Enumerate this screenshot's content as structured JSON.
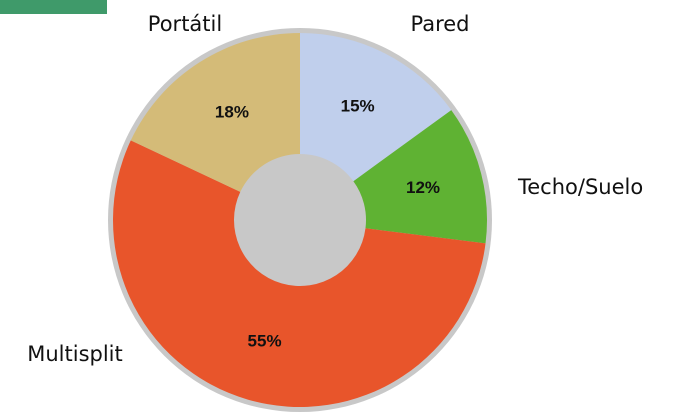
{
  "chart_data": {
    "type": "donut",
    "categories": [
      "Pared",
      "Techo/Suelo",
      "Multisplit",
      "Portátil"
    ],
    "values": [
      15,
      12,
      55,
      18
    ],
    "value_labels": [
      "15%",
      "12%",
      "55%",
      "18%"
    ],
    "colors": [
      "#c0cfec",
      "#5fb233",
      "#e8552b",
      "#d4bb78"
    ]
  }
}
